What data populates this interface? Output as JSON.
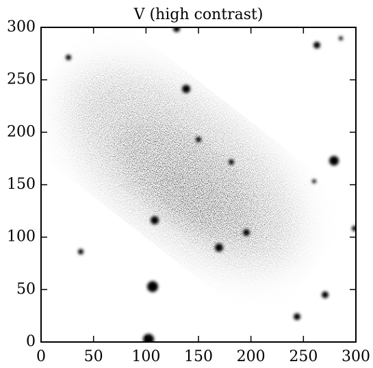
{
  "chart_data": {
    "type": "image",
    "title": "V (high contrast)",
    "xlim": [
      0,
      300
    ],
    "ylim": [
      0,
      300
    ],
    "xticks": [
      0,
      50,
      100,
      150,
      200,
      250,
      300
    ],
    "yticks": [
      0,
      50,
      100,
      150,
      200,
      250,
      300
    ]
  }
}
